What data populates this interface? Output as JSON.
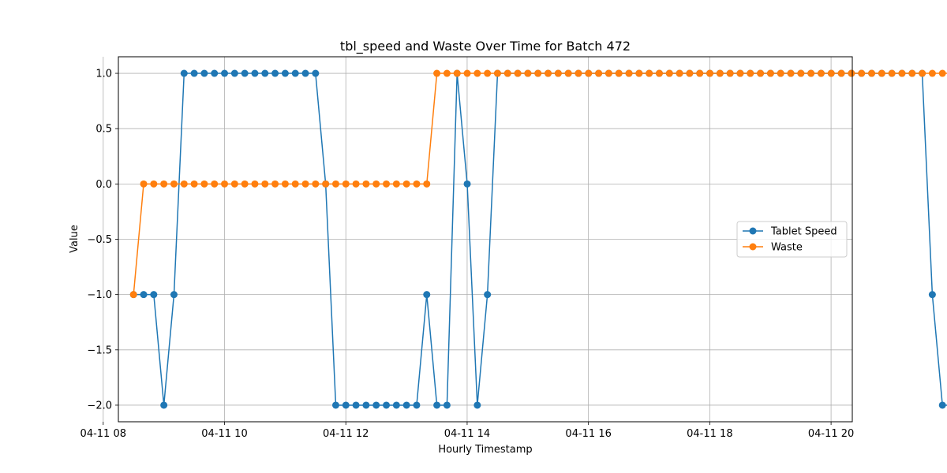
{
  "chart_data": {
    "type": "line",
    "title": "tbl_speed and Waste Over Time for Batch 472",
    "xlabel": "Hourly Timestamp",
    "ylabel": "Value",
    "x_start_hour": 8.5,
    "x_step_hours": 0.1667,
    "xlim": [
      8.25,
      20.35
    ],
    "ylim": [
      -2.15,
      1.15
    ],
    "x_ticks": [
      {
        "value": 8,
        "label": "04-11 08"
      },
      {
        "value": 10,
        "label": "04-11 10"
      },
      {
        "value": 12,
        "label": "04-11 12"
      },
      {
        "value": 14,
        "label": "04-11 14"
      },
      {
        "value": 16,
        "label": "04-11 16"
      },
      {
        "value": 18,
        "label": "04-11 18"
      },
      {
        "value": 20,
        "label": "04-11 20"
      }
    ],
    "y_ticks": [
      {
        "value": 1.0,
        "label": "1.0"
      },
      {
        "value": 0.5,
        "label": "0.5"
      },
      {
        "value": 0.0,
        "label": "0.0"
      },
      {
        "value": -0.5,
        "label": "−0.5"
      },
      {
        "value": -1.0,
        "label": "−1.0"
      },
      {
        "value": -1.5,
        "label": "−1.5"
      },
      {
        "value": -2.0,
        "label": "−2.0"
      }
    ],
    "grid": true,
    "legend_position": "right",
    "series": [
      {
        "name": "Tablet Speed",
        "color": "#1f77b4",
        "values": [
          -1,
          -1,
          -1,
          -2,
          -1,
          1,
          1,
          1,
          1,
          1,
          1,
          1,
          1,
          1,
          1,
          1,
          1,
          1,
          1,
          0,
          -2,
          -2,
          -2,
          -2,
          -2,
          -2,
          -2,
          -2,
          -2,
          -1,
          -2,
          -2,
          1,
          0,
          -2,
          -1,
          1,
          1,
          1,
          1,
          1,
          1,
          1,
          1,
          1,
          1,
          1,
          1,
          1,
          1,
          1,
          1,
          1,
          1,
          1,
          1,
          1,
          1,
          1,
          1,
          1,
          1,
          1,
          1,
          1,
          1,
          1,
          1,
          1,
          1,
          1,
          1,
          1,
          1,
          1,
          1,
          1,
          1,
          1,
          -1,
          -2,
          -2
        ]
      },
      {
        "name": "Waste",
        "color": "#ff7f0e",
        "values": [
          -1,
          0,
          0,
          0,
          0,
          0,
          0,
          0,
          0,
          0,
          0,
          0,
          0,
          0,
          0,
          0,
          0,
          0,
          0,
          0,
          0,
          0,
          0,
          0,
          0,
          0,
          0,
          0,
          0,
          0,
          1,
          1,
          1,
          1,
          1,
          1,
          1,
          1,
          1,
          1,
          1,
          1,
          1,
          1,
          1,
          1,
          1,
          1,
          1,
          1,
          1,
          1,
          1,
          1,
          1,
          1,
          1,
          1,
          1,
          1,
          1,
          1,
          1,
          1,
          1,
          1,
          1,
          1,
          1,
          1,
          1,
          1,
          1,
          1,
          1,
          1,
          1,
          1,
          1,
          1,
          1,
          1
        ]
      }
    ]
  }
}
